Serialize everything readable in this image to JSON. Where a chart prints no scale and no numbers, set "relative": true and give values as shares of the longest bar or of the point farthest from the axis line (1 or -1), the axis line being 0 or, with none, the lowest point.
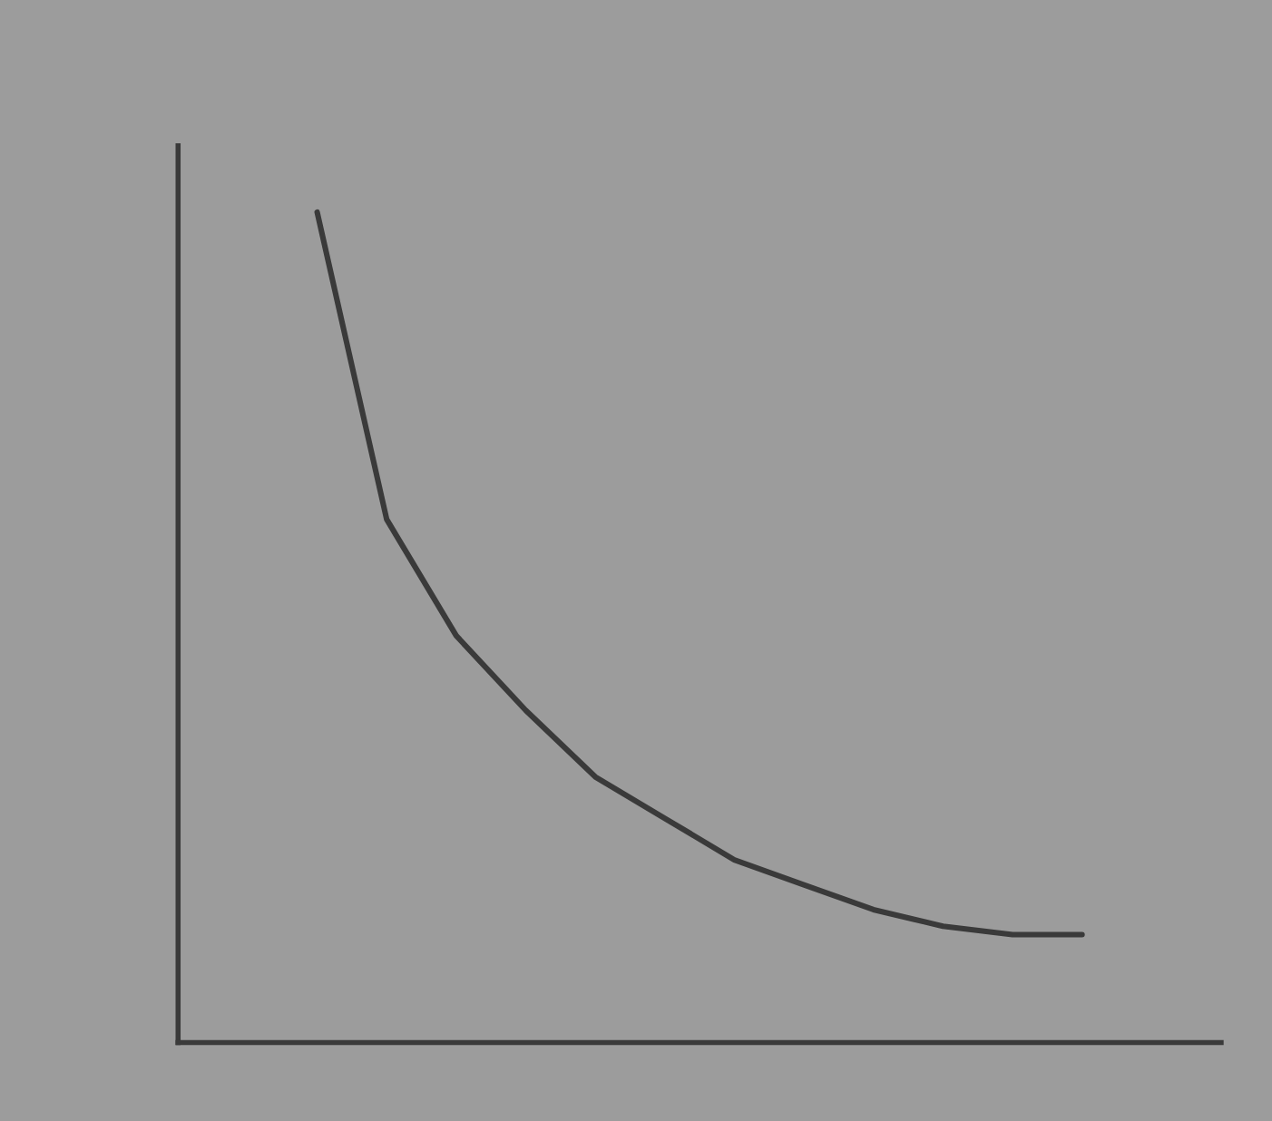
{
  "chart_data": {
    "type": "line",
    "relative": true,
    "grid": false,
    "marker": "none",
    "line_style": "solid",
    "categories": [
      null,
      null,
      null,
      null,
      null,
      null,
      null,
      null,
      null,
      null,
      null,
      null,
      null,
      null,
      null,
      null
    ],
    "series": [
      {
        "color": "#3a3a3a",
        "values": [
          null,
          null,
          1.0,
          0.63,
          0.49,
          0.4,
          0.32,
          0.27,
          0.22,
          0.19,
          0.16,
          0.14,
          0.13,
          0.13,
          null,
          null
        ]
      }
    ]
  }
}
